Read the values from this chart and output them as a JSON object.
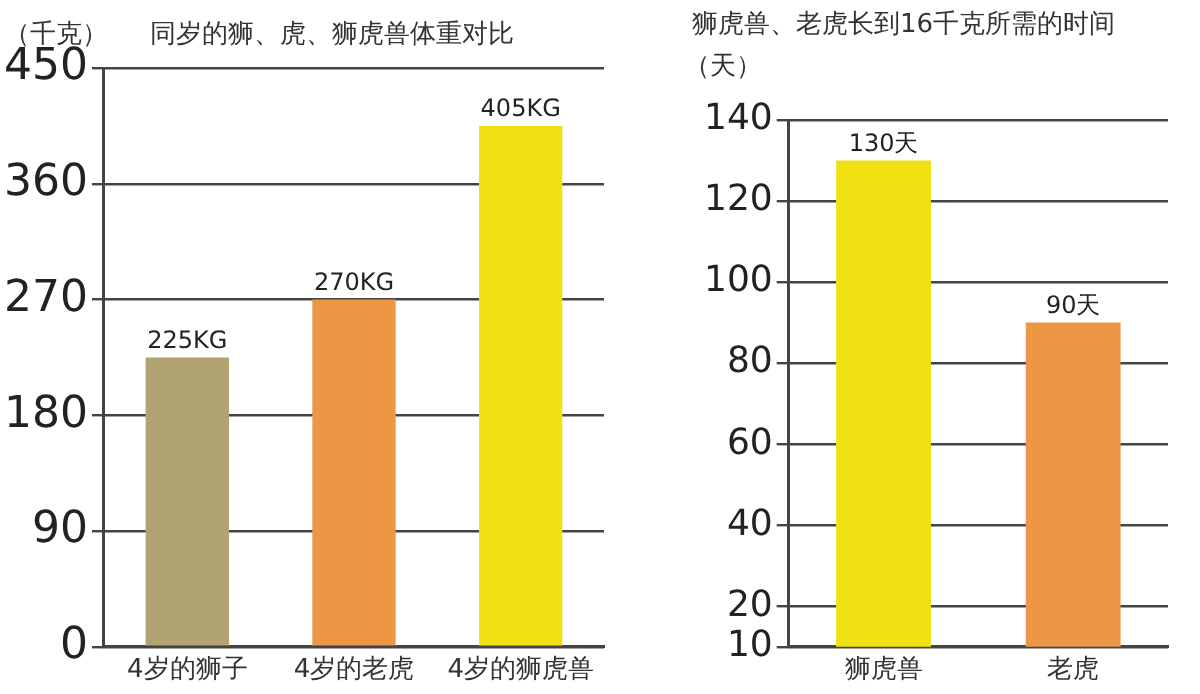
{
  "chart_data": [
    {
      "type": "bar",
      "title": "同岁的狮、虎、狮虎兽体重对比",
      "ylabel": "（千克）",
      "categories": [
        "4岁的狮子",
        "4岁的老虎",
        "4岁的狮虎兽"
      ],
      "values": [
        225,
        270,
        405
      ],
      "colors": [
        "#b1a472",
        "#ed9645",
        "#f1e012"
      ],
      "value_labels": [
        "225KG",
        "270KG",
        "405KG"
      ],
      "ylim": [
        0,
        450
      ],
      "yticks": [
        0,
        90,
        180,
        270,
        360,
        450
      ],
      "grid": "y"
    },
    {
      "type": "bar",
      "title": "狮虎兽、老虎长到16千克所需的时间",
      "ylabel": "（天）",
      "categories": [
        "狮虎兽",
        "老虎"
      ],
      "values": [
        130,
        90
      ],
      "colors": [
        "#f1e012",
        "#ed9645"
      ],
      "value_labels": [
        "130天",
        "90天"
      ],
      "ylim": [
        10,
        140
      ],
      "yticks": [
        10,
        20,
        40,
        60,
        80,
        100,
        120,
        140
      ],
      "grid": "y"
    }
  ]
}
